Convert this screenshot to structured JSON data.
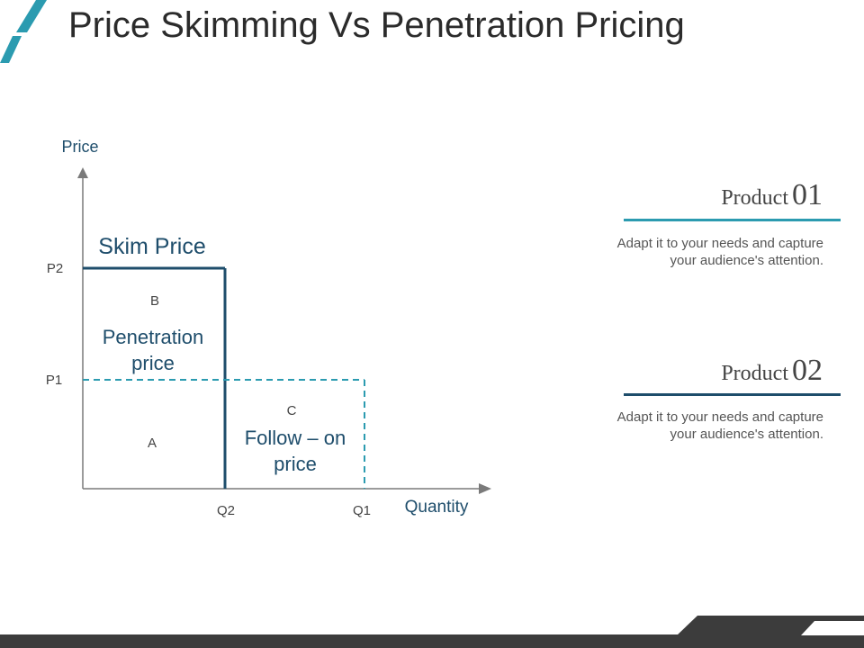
{
  "title": "Price Skimming Vs Penetration Pricing",
  "colors": {
    "accent_teal": "#2b9bb0",
    "accent_navy": "#1e4d6b",
    "axis": "#7a7a7a",
    "text_dark": "#2b2b2b",
    "footer": "#3c3c3c"
  },
  "diagram": {
    "y_axis_label": "Price",
    "x_axis_label": "Quantity",
    "y_ticks": [
      "P2",
      "P1"
    ],
    "x_ticks": [
      "Q2",
      "Q1"
    ],
    "skim_price_label": "Skim Price",
    "region_b": "B",
    "penetration_label_line1": "Penetration",
    "penetration_label_line2": "price",
    "region_a": "A",
    "region_c": "C",
    "follow_on_line1": "Follow – on",
    "follow_on_line2": "price"
  },
  "products": [
    {
      "word": "Product",
      "number": "01",
      "description": "Adapt it to your needs and capture your audience's attention."
    },
    {
      "word": "Product",
      "number": "02",
      "description": "Adapt it to your needs and capture your audience's attention."
    }
  ]
}
